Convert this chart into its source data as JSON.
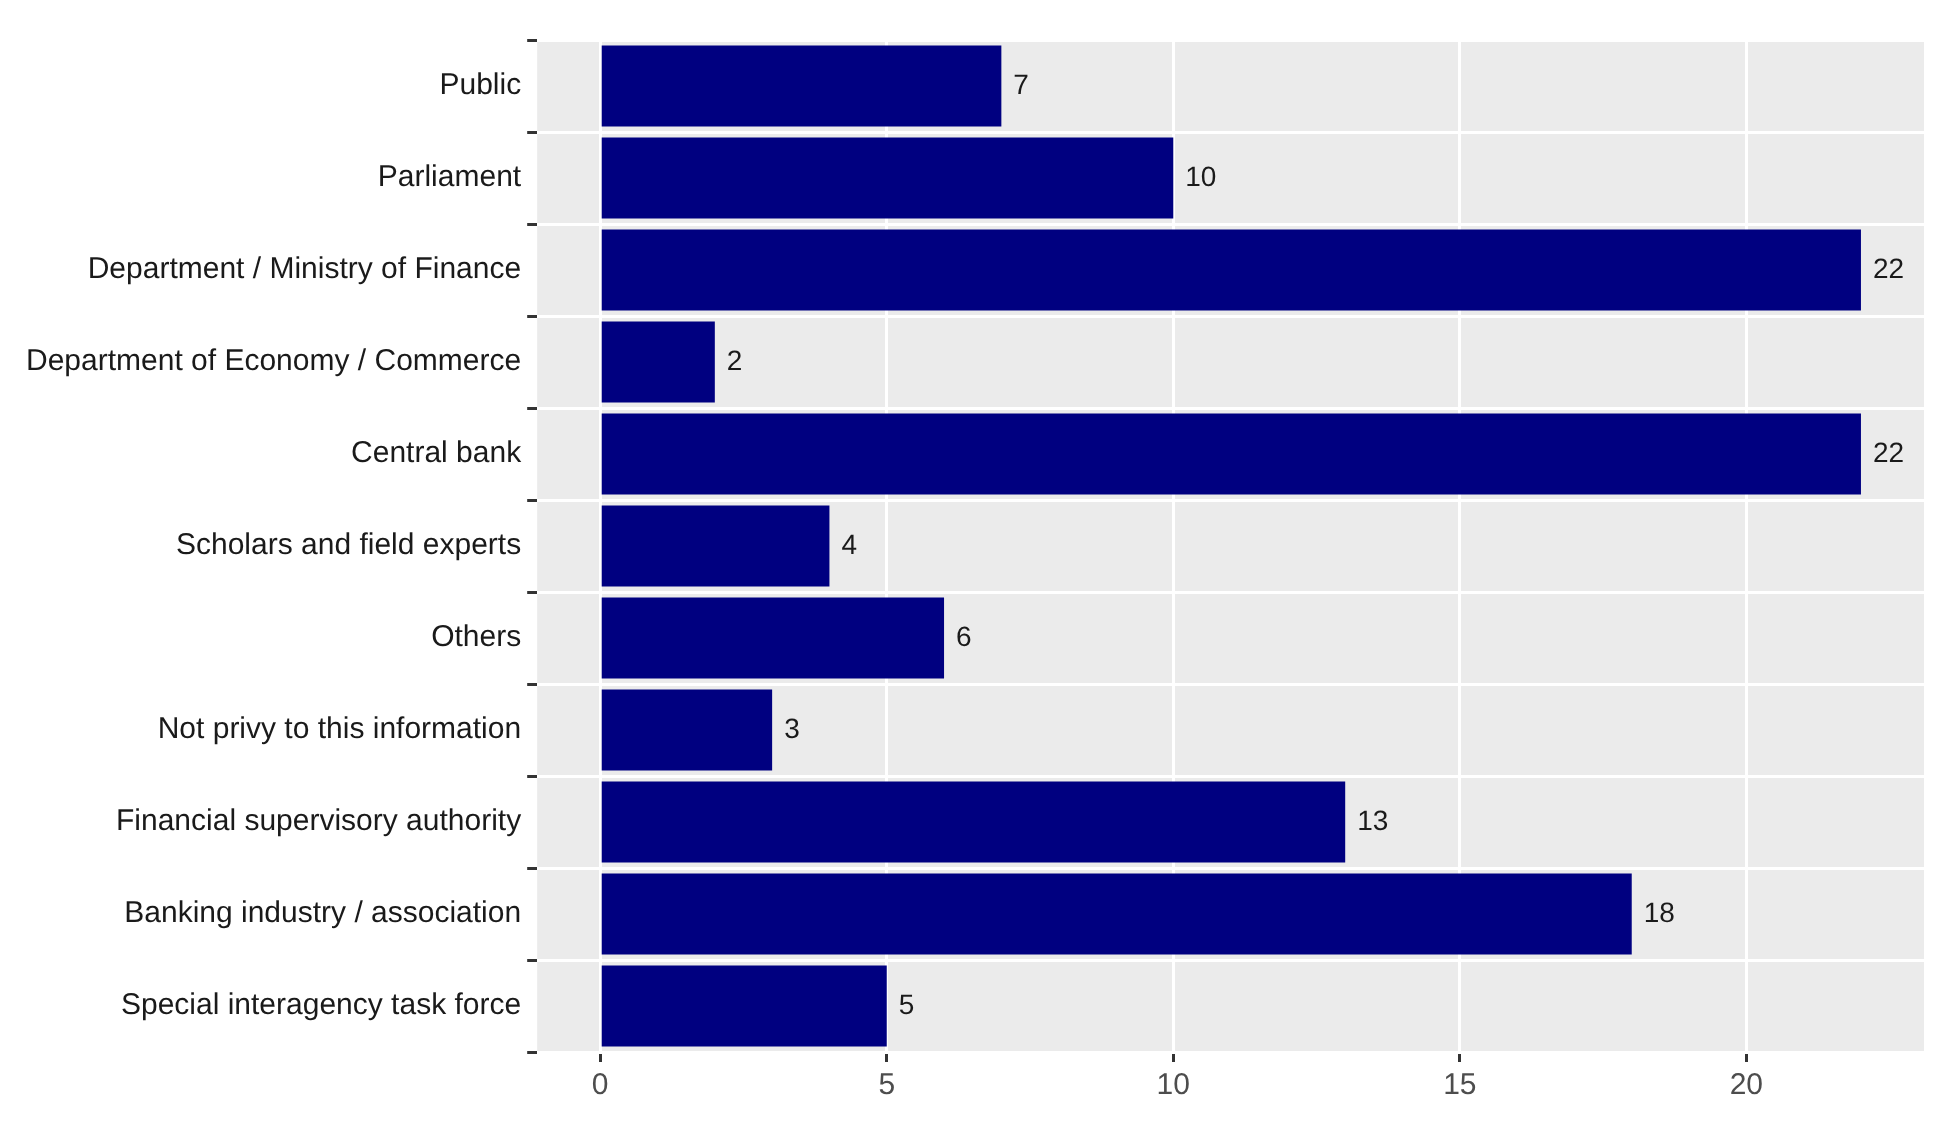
{
  "chart_data": {
    "type": "bar",
    "orientation": "horizontal",
    "categories": [
      "Public",
      "Parliament",
      "Department / Ministry of Finance",
      "Department of Economy / Commerce",
      "Central bank",
      "Scholars and field experts",
      "Others",
      "Not privy to this information",
      "Financial supervisory authority",
      "Banking industry / association",
      "Special interagency task force"
    ],
    "values": [
      7,
      10,
      22,
      2,
      22,
      4,
      6,
      3,
      13,
      18,
      5
    ],
    "color": "#000080",
    "xlim": [
      -1.1,
      23.1
    ],
    "xticks": [
      0,
      5,
      10,
      15,
      20
    ],
    "grid": true,
    "data_labels": true,
    "legend": false
  }
}
